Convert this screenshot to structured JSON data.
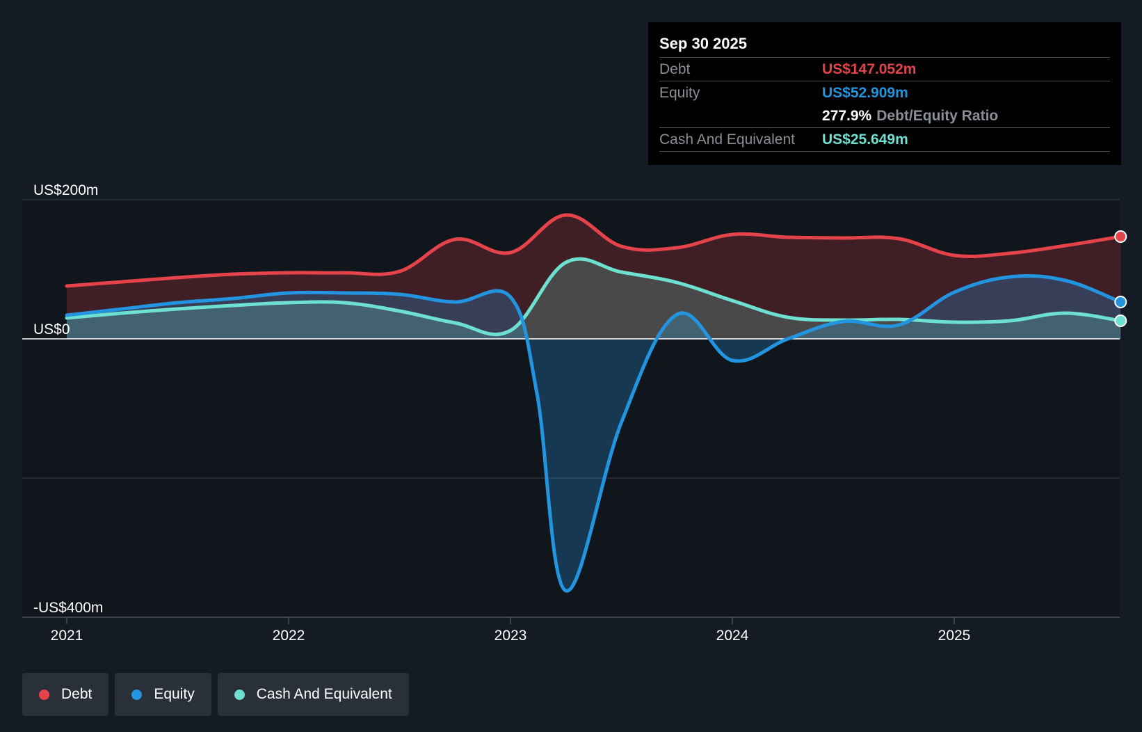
{
  "tooltip": {
    "date": "Sep 30 2025",
    "rows": {
      "debt": {
        "label": "Debt",
        "value": "US$147.052m"
      },
      "equity": {
        "label": "Equity",
        "value": "US$52.909m"
      },
      "ratio": {
        "value": "277.9%",
        "label": "Debt/Equity Ratio"
      },
      "cash": {
        "label": "Cash And Equivalent",
        "value": "US$25.649m"
      }
    }
  },
  "legend": [
    {
      "label": "Debt",
      "color": "#e5434a"
    },
    {
      "label": "Equity",
      "color": "#2394df"
    },
    {
      "label": "Cash And Equivalent",
      "color": "#6ee0d0"
    }
  ],
  "colors": {
    "debt": "#e5434a",
    "equity": "#2394df",
    "cash": "#6ee0d0",
    "background": "#151b24",
    "plot_area": "#11151c"
  },
  "chart_data": {
    "type": "area",
    "title": "",
    "xlabel": "",
    "ylabel": "",
    "y_tick_labels": [
      {
        "value": 200,
        "label": "US$200m"
      },
      {
        "value": 0,
        "label": "US$0"
      },
      {
        "value": -400,
        "label": "-US$400m"
      }
    ],
    "x_tick_labels": [
      {
        "value": 2021.0,
        "label": "2021"
      },
      {
        "value": 2022.0,
        "label": "2022"
      },
      {
        "value": 2023.0,
        "label": "2023"
      },
      {
        "value": 2024.0,
        "label": "2024"
      },
      {
        "value": 2025.0,
        "label": "2025"
      }
    ],
    "ylim": [
      -400,
      200
    ],
    "xlim": [
      2020.8,
      2025.75
    ],
    "grid": true,
    "series": [
      {
        "name": "Debt",
        "color": "#e5434a",
        "points": [
          [
            2021.0,
            76
          ],
          [
            2021.25,
            82
          ],
          [
            2021.5,
            88
          ],
          [
            2021.75,
            93
          ],
          [
            2022.0,
            95
          ],
          [
            2022.25,
            95
          ],
          [
            2022.5,
            97
          ],
          [
            2022.75,
            143
          ],
          [
            2023.0,
            124
          ],
          [
            2023.25,
            178
          ],
          [
            2023.5,
            133
          ],
          [
            2023.75,
            131
          ],
          [
            2024.0,
            150
          ],
          [
            2024.25,
            146
          ],
          [
            2024.5,
            145
          ],
          [
            2024.75,
            144
          ],
          [
            2025.0,
            120
          ],
          [
            2025.25,
            123
          ],
          [
            2025.5,
            134
          ],
          [
            2025.75,
            147
          ]
        ]
      },
      {
        "name": "Equity",
        "color": "#2394df",
        "points": [
          [
            2021.0,
            34
          ],
          [
            2021.25,
            43
          ],
          [
            2021.5,
            52
          ],
          [
            2021.75,
            58
          ],
          [
            2022.0,
            66
          ],
          [
            2022.25,
            66
          ],
          [
            2022.5,
            64
          ],
          [
            2022.75,
            53
          ],
          [
            2023.0,
            60
          ],
          [
            2023.12,
            -80
          ],
          [
            2023.25,
            -362
          ],
          [
            2023.5,
            -120
          ],
          [
            2023.75,
            35
          ],
          [
            2024.0,
            -31
          ],
          [
            2024.25,
            0
          ],
          [
            2024.5,
            25
          ],
          [
            2024.75,
            20
          ],
          [
            2025.0,
            67
          ],
          [
            2025.25,
            89
          ],
          [
            2025.5,
            84
          ],
          [
            2025.75,
            53
          ]
        ]
      },
      {
        "name": "Cash And Equivalent",
        "color": "#6ee0d0",
        "points": [
          [
            2021.0,
            30
          ],
          [
            2021.25,
            37
          ],
          [
            2021.5,
            43
          ],
          [
            2021.75,
            48
          ],
          [
            2022.0,
            52
          ],
          [
            2022.25,
            52
          ],
          [
            2022.5,
            40
          ],
          [
            2022.75,
            23
          ],
          [
            2023.0,
            12
          ],
          [
            2023.25,
            110
          ],
          [
            2023.5,
            96
          ],
          [
            2023.75,
            81
          ],
          [
            2024.0,
            55
          ],
          [
            2024.25,
            31
          ],
          [
            2024.5,
            27
          ],
          [
            2024.75,
            28
          ],
          [
            2025.0,
            24
          ],
          [
            2025.25,
            26
          ],
          [
            2025.5,
            37
          ],
          [
            2025.75,
            26
          ]
        ]
      }
    ]
  }
}
